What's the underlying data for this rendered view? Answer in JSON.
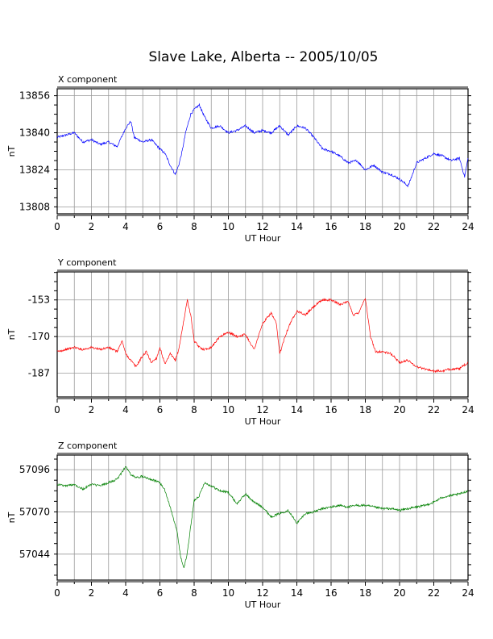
{
  "title": "Slave Lake, Alberta -- 2005/10/05",
  "chart_data": [
    {
      "type": "line",
      "panel_label": "X component",
      "xlabel": "UT Hour",
      "ylabel": "nT",
      "xlim": [
        0,
        24
      ],
      "ylim": [
        13805,
        13859
      ],
      "x_ticks": [
        0,
        2,
        4,
        6,
        8,
        10,
        12,
        14,
        16,
        18,
        20,
        22,
        24
      ],
      "y_ticks": [
        13808,
        13824,
        13840,
        13856
      ],
      "grid": true,
      "color": "#0000ff",
      "series": [
        {
          "x": [
            0,
            0.5,
            1,
            1.5,
            2,
            2.5,
            3,
            3.5,
            4,
            4.3,
            4.5,
            5,
            5.5,
            6,
            6.3,
            6.6,
            6.9,
            7.1,
            7.3,
            7.5,
            7.8,
            8,
            8.3,
            8.6,
            9,
            9.5,
            10,
            10.5,
            11,
            11.5,
            12,
            12.5,
            13,
            13.5,
            14,
            14.5,
            15,
            15.5,
            16,
            16.5,
            17,
            17.5,
            18,
            18.5,
            19,
            19.5,
            20,
            20.5,
            20.8,
            21,
            21.5,
            22,
            22.5,
            23,
            23.5,
            23.8,
            24
          ],
          "y": [
            13838,
            13839,
            13840,
            13836,
            13837,
            13835,
            13836,
            13834,
            13842,
            13845,
            13838,
            13836,
            13837,
            13833,
            13831,
            13826,
            13822,
            13826,
            13832,
            13840,
            13848,
            13850,
            13852,
            13847,
            13842,
            13843,
            13840,
            13841,
            13843,
            13840,
            13841,
            13840,
            13843,
            13839,
            13843,
            13842,
            13838,
            13833,
            13832,
            13830,
            13827,
            13828,
            13824,
            13826,
            13823,
            13822,
            13820,
            13817,
            13823,
            13827,
            13829,
            13831,
            13830,
            13828,
            13829,
            13821,
            13829
          ]
        }
      ]
    },
    {
      "type": "line",
      "panel_label": "Y component",
      "xlabel": "UT Hour",
      "ylabel": "nT",
      "xlim": [
        0,
        24
      ],
      "ylim": [
        -198,
        -140
      ],
      "x_ticks": [
        0,
        2,
        4,
        6,
        8,
        10,
        12,
        14,
        16,
        18,
        20,
        22,
        24
      ],
      "y_ticks": [
        -153,
        -170,
        -187
      ],
      "grid": true,
      "color": "#ff0000",
      "series": [
        {
          "x": [
            0,
            0.5,
            1,
            1.5,
            2,
            2.5,
            3,
            3.5,
            3.8,
            4,
            4.3,
            4.6,
            4.9,
            5.2,
            5.5,
            5.8,
            6,
            6.3,
            6.6,
            6.9,
            7.1,
            7.3,
            7.6,
            7.8,
            8,
            8.3,
            8.6,
            9,
            9.5,
            10,
            10.5,
            11,
            11.5,
            12,
            12.5,
            12.8,
            13,
            13.3,
            13.6,
            14,
            14.5,
            15,
            15.5,
            16,
            16.5,
            17,
            17.3,
            17.6,
            18,
            18.3,
            18.6,
            19,
            19.5,
            20,
            20.5,
            21,
            21.5,
            22,
            22.5,
            23,
            23.5,
            24
          ],
          "y": [
            -177,
            -176,
            -175,
            -176,
            -175,
            -176,
            -175,
            -177,
            -172,
            -178,
            -181,
            -184,
            -180,
            -177,
            -182,
            -180,
            -175,
            -183,
            -178,
            -181,
            -176,
            -167,
            -153,
            -160,
            -172,
            -175,
            -176,
            -175,
            -170,
            -168,
            -170,
            -169,
            -176,
            -164,
            -159,
            -164,
            -178,
            -170,
            -164,
            -158,
            -160,
            -156,
            -153,
            -153,
            -155,
            -154,
            -160,
            -159,
            -152,
            -170,
            -177,
            -177,
            -178,
            -182,
            -181,
            -184,
            -185,
            -186,
            -186,
            -185,
            -185,
            -182
          ]
        }
      ]
    },
    {
      "type": "line",
      "panel_label": "Z component",
      "xlabel": "UT Hour",
      "ylabel": "nT",
      "xlim": [
        0,
        24
      ],
      "ylim": [
        57028,
        57105
      ],
      "x_ticks": [
        0,
        2,
        4,
        6,
        8,
        10,
        12,
        14,
        16,
        18,
        20,
        22,
        24
      ],
      "y_ticks": [
        57044,
        57070,
        57096
      ],
      "grid": true,
      "color": "#008000",
      "series": [
        {
          "x": [
            0,
            0.5,
            1,
            1.5,
            2,
            2.5,
            3,
            3.5,
            4,
            4.3,
            4.6,
            5,
            5.5,
            6,
            6.3,
            6.6,
            7,
            7.2,
            7.4,
            7.6,
            7.8,
            8,
            8.3,
            8.6,
            9,
            9.5,
            10,
            10.5,
            11,
            11.5,
            12,
            12.5,
            13,
            13.5,
            14,
            14.5,
            15,
            15.5,
            16,
            16.5,
            17,
            17.5,
            18,
            18.5,
            19,
            19.5,
            20,
            20.5,
            21,
            21.5,
            22,
            22.5,
            23,
            23.5,
            24
          ],
          "y": [
            57087,
            57086,
            57087,
            57084,
            57087,
            57086,
            57088,
            57090,
            57098,
            57093,
            57091,
            57092,
            57090,
            57088,
            57083,
            57073,
            57058,
            57043,
            57035,
            57045,
            57061,
            57077,
            57080,
            57088,
            57086,
            57083,
            57082,
            57075,
            57081,
            57076,
            57073,
            57067,
            57069,
            57071,
            57063,
            57069,
            57070,
            57072,
            57073,
            57074,
            57073,
            57074,
            57074,
            57073,
            57072,
            57072,
            57071,
            57072,
            57073,
            57074,
            57076,
            57079,
            57080,
            57081,
            57083
          ]
        }
      ]
    }
  ]
}
